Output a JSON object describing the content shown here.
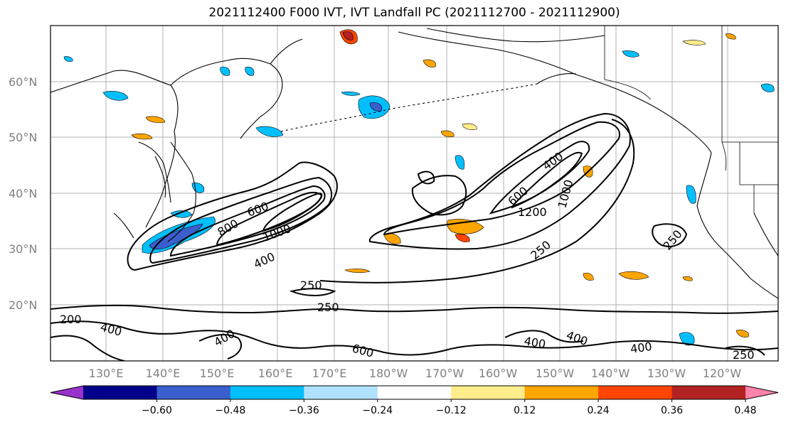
{
  "title": "2021112400 F000 IVT, IVT Landfall PC (2021112700 - 2021112900)",
  "lat_labels": [
    "60°N",
    "50°N",
    "40°N",
    "30°N",
    "20°N"
  ],
  "lon_labels": [
    "130°E",
    "140°E",
    "150°E",
    "160°E",
    "170°E",
    "180°W",
    "170°W",
    "160°W",
    "150°W",
    "140°W",
    "130°W",
    "120°W"
  ],
  "colorbar": {
    "ticks": [
      "−0.60",
      "−0.48",
      "−0.36",
      "−0.24",
      "−0.12",
      "0.12",
      "0.24",
      "0.36",
      "0.48",
      "0.60"
    ],
    "colors": [
      "#9932cc",
      "#00008b",
      "#3a5fcd",
      "#00bfff",
      "#b0e2ff",
      "#ffffff",
      "#ffec8b",
      "#ffa500",
      "#ff4500",
      "#b22222",
      "#ff82ab"
    ]
  },
  "contour_labels": {
    "c800": "800",
    "c600a": "600",
    "c1000": "1000",
    "c400a": "400",
    "c250a": "250",
    "c250b": "250",
    "c400b": "400",
    "c200a": "200",
    "c400c": "400",
    "c600b": "600",
    "c400d": "400",
    "c400e": "400",
    "c400f": "400",
    "c250c": "250",
    "c600c": "600",
    "c1200": "1200",
    "c1000b": "1000",
    "c400g": "400",
    "c250d": "250",
    "c250e": "250"
  }
}
